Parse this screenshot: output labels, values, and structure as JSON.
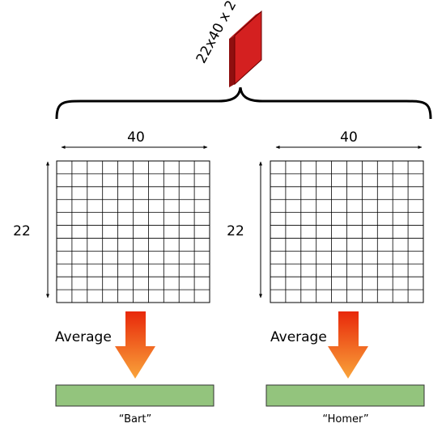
{
  "tensor": {
    "label": "22x40 x 2",
    "colors": {
      "front": "#d42020",
      "side": "#8f0f0f",
      "edge": "#6a0000"
    }
  },
  "panels": [
    {
      "width_label": "40",
      "height_label": "22",
      "arrow_label": "Average",
      "output_label": "“Bart”"
    },
    {
      "width_label": "40",
      "height_label": "22",
      "arrow_label": "Average",
      "output_label": "“Homer”"
    }
  ],
  "colors": {
    "output_bar": "#93c47d",
    "output_border": "#333333",
    "arrow_top": "#e8280a",
    "arrow_bottom": "#f9a43a"
  }
}
